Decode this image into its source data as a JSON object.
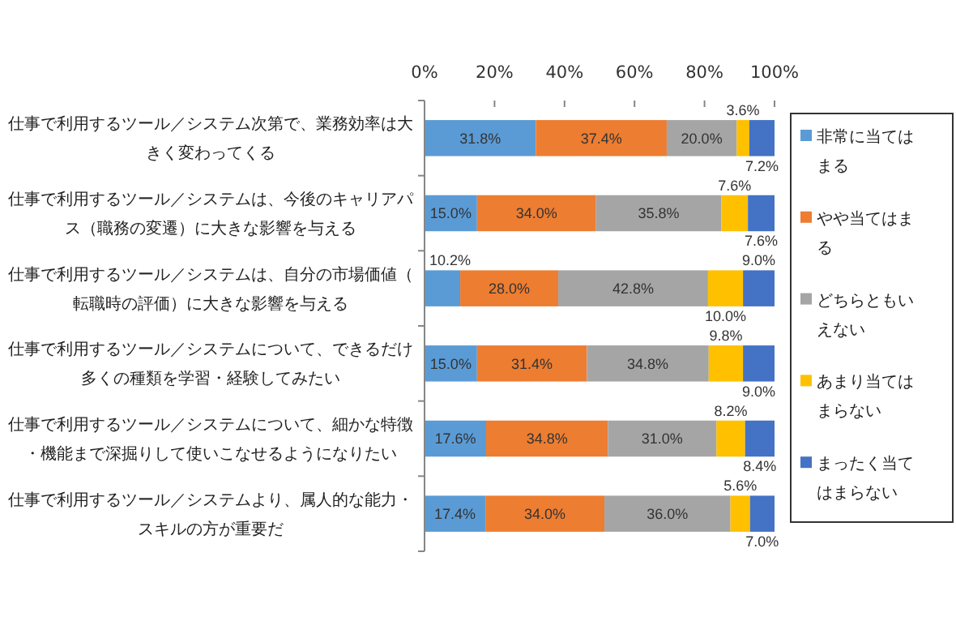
{
  "chart_data": {
    "type": "bar",
    "orientation": "horizontal",
    "stacked": true,
    "categories": [
      "仕事で利用するツール／システム次第で、業務効率は大きく変わってくる",
      "仕事で利用するツール／システムは、今後のキャリアパス（職務の変遷）に大きな影響を与える",
      "仕事で利用するツール／システムは、自分の市場価値（転職時の評価）に大きな影響を与える",
      "仕事で利用するツール／システムについて、できるだけ多くの種類を学習・経験してみたい",
      "仕事で利用するツール／システムについて、細かな特徴・機能まで深掘りして使いこなせるようになりたい",
      "仕事で利用するツール／システムより、属人的な能力・スキルの方が重要だ"
    ],
    "series": [
      {
        "name": "非常に当てはまる",
        "color": "#5b9bd5",
        "values": [
          31.8,
          15.0,
          10.2,
          15.0,
          17.6,
          17.4
        ],
        "value_labels": [
          "31.8%",
          "15.0%",
          "10.2%",
          "15.0%",
          "17.6%",
          "17.4%"
        ]
      },
      {
        "name": "やや当てはまる",
        "color": "#ed7d31",
        "values": [
          37.4,
          34.0,
          28.0,
          31.4,
          34.8,
          34.0
        ],
        "value_labels": [
          "37.4%",
          "34.0%",
          "28.0%",
          "31.4%",
          "34.8%",
          "34.0%"
        ]
      },
      {
        "name": "どちらともいえない",
        "color": "#a5a5a5",
        "values": [
          20.0,
          35.8,
          42.8,
          34.8,
          31.0,
          36.0
        ],
        "value_labels": [
          "20.0%",
          "35.8%",
          "42.8%",
          "34.8%",
          "31.0%",
          "36.0%"
        ]
      },
      {
        "name": "あまり当てはまらない",
        "color": "#ffc000",
        "values": [
          3.6,
          7.6,
          10.0,
          9.8,
          8.2,
          5.6
        ],
        "value_labels": [
          "3.6%",
          "7.6%",
          "10.0%",
          "9.8%",
          "8.2%",
          "5.6%"
        ]
      },
      {
        "name": "まったく当てはまらない",
        "color": "#4472c4",
        "values": [
          7.2,
          7.6,
          9.0,
          9.0,
          8.4,
          7.0
        ],
        "value_labels": [
          "7.2%",
          "7.6%",
          "9.0%",
          "9.0%",
          "8.4%",
          "7.0%"
        ]
      }
    ],
    "xlim": [
      0,
      100
    ],
    "xticks": [
      {
        "value": 0,
        "label": "0%"
      },
      {
        "value": 20,
        "label": "20%"
      },
      {
        "value": 40,
        "label": "40%"
      },
      {
        "value": 60,
        "label": "60%"
      },
      {
        "value": 80,
        "label": "80%"
      },
      {
        "value": 100,
        "label": "100%"
      }
    ],
    "grid": false,
    "legend": "right"
  }
}
